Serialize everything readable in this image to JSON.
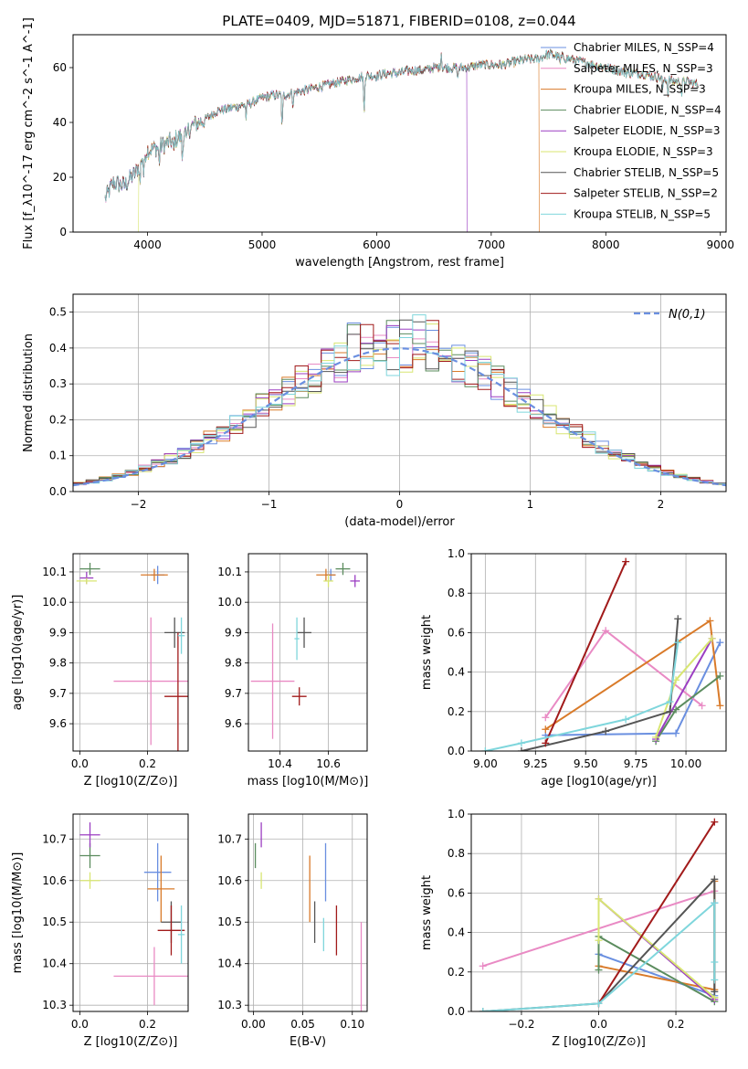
{
  "figure": {
    "title": "PLATE=0409, MJD=51871, FIBERID=0108, z=0.044"
  },
  "colors": {
    "cm": "#6a8fe0",
    "sm": "#e98ac4",
    "km": "#d97a29",
    "ce": "#5b8c5e",
    "se": "#9b3ec2",
    "ke": "#d8e672",
    "cs": "#555555",
    "ss": "#a11a1a",
    "ks": "#7fd6dc",
    "gauss": "#6a8fe0"
  },
  "chart_data": [
    {
      "id": "spectrum",
      "type": "line",
      "xlabel": "wavelength [Angstrom, rest frame]",
      "ylabel": "Flux [f_λ10^-17 erg cm^-2 s^-1 A^-1]",
      "xlim": [
        3350,
        9050
      ],
      "ylim": [
        0,
        72
      ],
      "xticks": [
        4000,
        5000,
        6000,
        7000,
        8000,
        9000
      ],
      "yticks": [
        0,
        20,
        40,
        60
      ],
      "legend": [
        "Chabrier MILES, N_SSP=4",
        "Salpeter MILES, N_SSP=3",
        "Kroupa MILES, N_SSP=3",
        "Chabrier ELODIE, N_SSP=4",
        "Salpeter ELODIE, N_SSP=3",
        "Kroupa ELODIE, N_SSP=3",
        "Chabrier STELIB, N_SSP=5",
        "Salpeter STELIB, N_SSP=2",
        "Kroupa STELIB, N_SSP=5"
      ],
      "legend_position": "upper right",
      "continuum": [
        [
          3630,
          12
        ],
        [
          3700,
          18
        ],
        [
          3800,
          17
        ],
        [
          3900,
          22
        ],
        [
          3950,
          27
        ],
        [
          4000,
          30
        ],
        [
          4100,
          31
        ],
        [
          4200,
          33
        ],
        [
          4300,
          35
        ],
        [
          4400,
          39
        ],
        [
          4500,
          41
        ],
        [
          4600,
          44
        ],
        [
          4700,
          45
        ],
        [
          4800,
          46
        ],
        [
          4900,
          47
        ],
        [
          5000,
          49
        ],
        [
          5100,
          50
        ],
        [
          5200,
          50
        ],
        [
          5300,
          51
        ],
        [
          5400,
          52
        ],
        [
          5500,
          53
        ],
        [
          5600,
          54
        ],
        [
          5700,
          55
        ],
        [
          5800,
          56
        ],
        [
          5900,
          57
        ],
        [
          6000,
          57
        ],
        [
          6100,
          58
        ],
        [
          6200,
          58
        ],
        [
          6300,
          59
        ],
        [
          6400,
          59
        ],
        [
          6500,
          60
        ],
        [
          6600,
          60
        ],
        [
          6700,
          60
        ],
        [
          6800,
          60
        ],
        [
          6900,
          61
        ],
        [
          7000,
          61
        ],
        [
          7100,
          61
        ],
        [
          7200,
          62
        ],
        [
          7300,
          63
        ],
        [
          7400,
          63
        ],
        [
          7500,
          65
        ],
        [
          7600,
          64
        ],
        [
          7700,
          63
        ],
        [
          7800,
          62
        ],
        [
          7900,
          61
        ],
        [
          8000,
          60
        ],
        [
          8100,
          59
        ],
        [
          8200,
          58
        ],
        [
          8300,
          58
        ],
        [
          8400,
          57
        ],
        [
          8500,
          56
        ],
        [
          8600,
          55
        ],
        [
          8700,
          55
        ],
        [
          8800,
          54
        ]
      ],
      "absorption": [
        [
          3934,
          8
        ],
        [
          3968,
          8
        ],
        [
          4102,
          6
        ],
        [
          4227,
          5
        ],
        [
          4304,
          9
        ],
        [
          4341,
          5
        ],
        [
          4861,
          5
        ],
        [
          5175,
          12
        ],
        [
          5270,
          4
        ],
        [
          5890,
          14
        ],
        [
          6563,
          -6
        ],
        [
          6708,
          4
        ],
        [
          7600,
          3
        ],
        [
          8498,
          4
        ],
        [
          8542,
          5
        ],
        [
          8662,
          5
        ]
      ],
      "series_ends": [
        {
          "series": 2,
          "x_drop": 7420
        },
        {
          "series": 4,
          "x_drop": 6790
        },
        {
          "series": 5,
          "x_start": 3920
        }
      ]
    },
    {
      "id": "residuals",
      "type": "histogram",
      "xlabel": "(data-model)/error",
      "ylabel": "Normed distribution",
      "xlim": [
        -2.5,
        2.5
      ],
      "ylim": [
        0,
        0.55
      ],
      "xticks": [
        -2,
        -1,
        0,
        1,
        2
      ],
      "yticks": [
        0.0,
        0.1,
        0.2,
        0.3,
        0.4,
        0.5
      ],
      "grid": true,
      "bin_width": 0.1,
      "legend": [
        "N(0,1)"
      ],
      "legend_position": "upper right"
    },
    {
      "id": "age_vs_Z",
      "type": "errorbar",
      "xlabel": "Z [log10(Z/Z⊙)]",
      "ylabel": "age  [log10(age/yr)]",
      "xlim": [
        -0.02,
        0.32
      ],
      "ylim": [
        9.51,
        10.16
      ],
      "xticks": [
        0.0,
        0.2
      ],
      "yticks": [
        9.6,
        9.7,
        9.8,
        9.9,
        10.0,
        10.1
      ],
      "points": [
        {
          "s": "cm",
          "x": 0.23,
          "y": 10.09,
          "xe": 0.02,
          "ye": 0.03
        },
        {
          "s": "sm",
          "x": 0.21,
          "y": 9.74,
          "xe": 0.11,
          "ye": 0.21
        },
        {
          "s": "km",
          "x": 0.22,
          "y": 10.09,
          "xe": 0.04,
          "ye": 0.02
        },
        {
          "s": "ce",
          "x": 0.03,
          "y": 10.11,
          "xe": 0.03,
          "ye": 0.02
        },
        {
          "s": "se",
          "x": 0.02,
          "y": 10.08,
          "xe": 0.02,
          "ye": 0.02
        },
        {
          "s": "ke",
          "x": 0.02,
          "y": 10.07,
          "xe": 0.03,
          "ye": 0.01
        },
        {
          "s": "cs",
          "x": 0.28,
          "y": 9.9,
          "xe": 0.03,
          "ye": 0.05
        },
        {
          "s": "ss",
          "x": 0.29,
          "y": 9.69,
          "xe": 0.04,
          "ye": 0.21
        },
        {
          "s": "ks",
          "x": 0.3,
          "y": 9.89,
          "xe": 0.01,
          "ye": 0.06
        }
      ]
    },
    {
      "id": "age_vs_mass",
      "type": "errorbar",
      "xlabel": "mass [log10(M/M⊙)]",
      "ylabel": "",
      "xlim": [
        10.27,
        10.76
      ],
      "ylim": [
        9.51,
        10.16
      ],
      "xticks": [
        10.4,
        10.6
      ],
      "yticks": [
        9.6,
        9.7,
        9.8,
        9.9,
        10.0,
        10.1
      ],
      "points": [
        {
          "s": "cm",
          "x": 10.61,
          "y": 10.09,
          "xe": 0.02,
          "ye": 0.02
        },
        {
          "s": "sm",
          "x": 10.37,
          "y": 9.74,
          "xe": 0.09,
          "ye": 0.19
        },
        {
          "s": "km",
          "x": 10.59,
          "y": 10.09,
          "xe": 0.04,
          "ye": 0.02
        },
        {
          "s": "ce",
          "x": 10.66,
          "y": 10.11,
          "xe": 0.03,
          "ye": 0.02
        },
        {
          "s": "se",
          "x": 10.71,
          "y": 10.07,
          "xe": 0.02,
          "ye": 0.02
        },
        {
          "s": "ke",
          "x": 10.6,
          "y": 10.07,
          "xe": 0.02,
          "ye": 0.02
        },
        {
          "s": "cs",
          "x": 10.5,
          "y": 9.9,
          "xe": 0.03,
          "ye": 0.05
        },
        {
          "s": "ss",
          "x": 10.48,
          "y": 9.69,
          "xe": 0.03,
          "ye": 0.03
        },
        {
          "s": "ks",
          "x": 10.47,
          "y": 9.88,
          "xe": 0.01,
          "ye": 0.07
        }
      ]
    },
    {
      "id": "weights_vs_age",
      "type": "line",
      "xlabel": "age  [log10(age/yr)]",
      "ylabel": "mass weight",
      "xlim": [
        8.93,
        10.2
      ],
      "ylim": [
        0,
        1.0
      ],
      "xticks": [
        9.0,
        9.25,
        9.5,
        9.75,
        10.0
      ],
      "yticks": [
        0.0,
        0.2,
        0.4,
        0.6,
        0.8,
        1.0
      ],
      "grid": true,
      "series": [
        {
          "s": "cm",
          "x": [
            9.3,
            9.95,
            10.17
          ],
          "y": [
            0.08,
            0.09,
            0.55
          ]
        },
        {
          "s": "sm",
          "x": [
            9.3,
            9.6,
            10.08
          ],
          "y": [
            0.17,
            0.61,
            0.23
          ]
        },
        {
          "s": "km",
          "x": [
            9.3,
            10.12,
            10.17
          ],
          "y": [
            0.11,
            0.66,
            0.23
          ]
        },
        {
          "s": "ce",
          "x": [
            9.85,
            9.95,
            10.17
          ],
          "y": [
            0.05,
            0.21,
            0.38
          ]
        },
        {
          "s": "se",
          "x": [
            9.85,
            10.13
          ],
          "y": [
            0.06,
            0.57
          ]
        },
        {
          "s": "ke",
          "x": [
            9.85,
            9.95,
            10.13
          ],
          "y": [
            0.07,
            0.36,
            0.57
          ]
        },
        {
          "s": "cs",
          "x": [
            9.18,
            9.6,
            9.92,
            9.96
          ],
          "y": [
            0.0,
            0.1,
            0.2,
            0.67
          ]
        },
        {
          "s": "ss",
          "x": [
            9.3,
            9.7
          ],
          "y": [
            0.04,
            0.96
          ]
        },
        {
          "s": "ks",
          "x": [
            9.0,
            9.18,
            9.7,
            9.92,
            9.96
          ],
          "y": [
            0.0,
            0.04,
            0.16,
            0.25,
            0.55
          ]
        }
      ]
    },
    {
      "id": "mass_vs_Z",
      "type": "errorbar",
      "xlabel": "Z [log10(Z/Z⊙)]",
      "ylabel": "mass [log10(M/M⊙)]",
      "xlim": [
        -0.02,
        0.32
      ],
      "ylim": [
        10.285,
        10.76
      ],
      "xticks": [
        0.0,
        0.2
      ],
      "yticks": [
        10.3,
        10.4,
        10.5,
        10.6,
        10.7
      ],
      "points": [
        {
          "s": "cm",
          "x": 0.23,
          "y": 10.62,
          "xe": 0.04,
          "ye": 0.07
        },
        {
          "s": "sm",
          "x": 0.22,
          "y": 10.37,
          "xe": 0.12,
          "ye": 0.07
        },
        {
          "s": "km",
          "x": 0.24,
          "y": 10.58,
          "xe": 0.04,
          "ye": 0.08
        },
        {
          "s": "ce",
          "x": 0.03,
          "y": 10.66,
          "xe": 0.03,
          "ye": 0.03
        },
        {
          "s": "se",
          "x": 0.03,
          "y": 10.71,
          "xe": 0.03,
          "ye": 0.03
        },
        {
          "s": "ke",
          "x": 0.03,
          "y": 10.6,
          "xe": 0.03,
          "ye": 0.02
        },
        {
          "s": "cs",
          "x": 0.27,
          "y": 10.5,
          "xe": 0.03,
          "ye": 0.05
        },
        {
          "s": "ss",
          "x": 0.27,
          "y": 10.48,
          "xe": 0.04,
          "ye": 0.06
        },
        {
          "s": "ks",
          "x": 0.3,
          "y": 10.47,
          "xe": 0.01,
          "ye": 0.07
        }
      ]
    },
    {
      "id": "mass_vs_ebv",
      "type": "errorbar",
      "xlabel": "E(B-V)",
      "ylabel": "",
      "xlim": [
        -0.005,
        0.115
      ],
      "ylim": [
        10.285,
        10.76
      ],
      "xticks": [
        0.0,
        0.05,
        0.1
      ],
      "yticks": [
        10.3,
        10.4,
        10.5,
        10.6,
        10.7
      ],
      "points": [
        {
          "s": "cm",
          "x": 0.073,
          "y": 10.62,
          "xe": 0.0,
          "ye": 0.07
        },
        {
          "s": "sm",
          "x": 0.109,
          "y": 10.37,
          "xe": 0.0,
          "ye": 0.13
        },
        {
          "s": "km",
          "x": 0.057,
          "y": 10.58,
          "xe": 0.0,
          "ye": 0.08
        },
        {
          "s": "ce",
          "x": 0.002,
          "y": 10.66,
          "xe": 0.0,
          "ye": 0.03
        },
        {
          "s": "se",
          "x": 0.008,
          "y": 10.71,
          "xe": 0.0,
          "ye": 0.03
        },
        {
          "s": "ke",
          "x": 0.008,
          "y": 10.6,
          "xe": 0.0,
          "ye": 0.02
        },
        {
          "s": "cs",
          "x": 0.062,
          "y": 10.5,
          "xe": 0.0,
          "ye": 0.05
        },
        {
          "s": "ss",
          "x": 0.084,
          "y": 10.48,
          "xe": 0.0,
          "ye": 0.06
        },
        {
          "s": "ks",
          "x": 0.071,
          "y": 10.47,
          "xe": 0.0,
          "ye": 0.04
        }
      ]
    },
    {
      "id": "weights_vs_Z",
      "type": "line",
      "xlabel": "Z [log10(Z/Z⊙)]",
      "ylabel": "mass weight",
      "xlim": [
        -0.33,
        0.33
      ],
      "ylim": [
        0,
        1.0
      ],
      "xticks": [
        -0.2,
        0.0,
        0.2
      ],
      "yticks": [
        0.0,
        0.2,
        0.4,
        0.6,
        0.8,
        1.0
      ],
      "grid": true,
      "series": [
        {
          "s": "cm",
          "x": [
            0.0,
            0.3,
            0.3
          ],
          "y": [
            0.29,
            0.08,
            0.55
          ]
        },
        {
          "s": "sm",
          "x": [
            -0.3,
            0.3
          ],
          "y": [
            0.23,
            0.61
          ]
        },
        {
          "s": "km",
          "x": [
            0.0,
            0.3,
            0.3
          ],
          "y": [
            0.23,
            0.11,
            0.66
          ]
        },
        {
          "s": "ce",
          "x": [
            0.0,
            0.0,
            0.3,
            0.3
          ],
          "y": [
            0.21,
            0.38,
            0.05,
            0.07
          ]
        },
        {
          "s": "se",
          "x": [
            0.0,
            0.3
          ],
          "y": [
            0.57,
            0.06
          ]
        },
        {
          "s": "ke",
          "x": [
            0.0,
            0.0,
            0.3
          ],
          "y": [
            0.36,
            0.57,
            0.07
          ]
        },
        {
          "s": "cs",
          "x": [
            -0.3,
            0.0,
            0.3,
            0.3
          ],
          "y": [
            0.0,
            0.04,
            0.67,
            0.1
          ]
        },
        {
          "s": "ss",
          "x": [
            0.0,
            0.3
          ],
          "y": [
            0.04,
            0.96
          ]
        },
        {
          "s": "ks",
          "x": [
            -0.3,
            0.0,
            0.3,
            0.3,
            0.3
          ],
          "y": [
            0.0,
            0.04,
            0.55,
            0.25,
            0.16
          ]
        }
      ]
    }
  ]
}
